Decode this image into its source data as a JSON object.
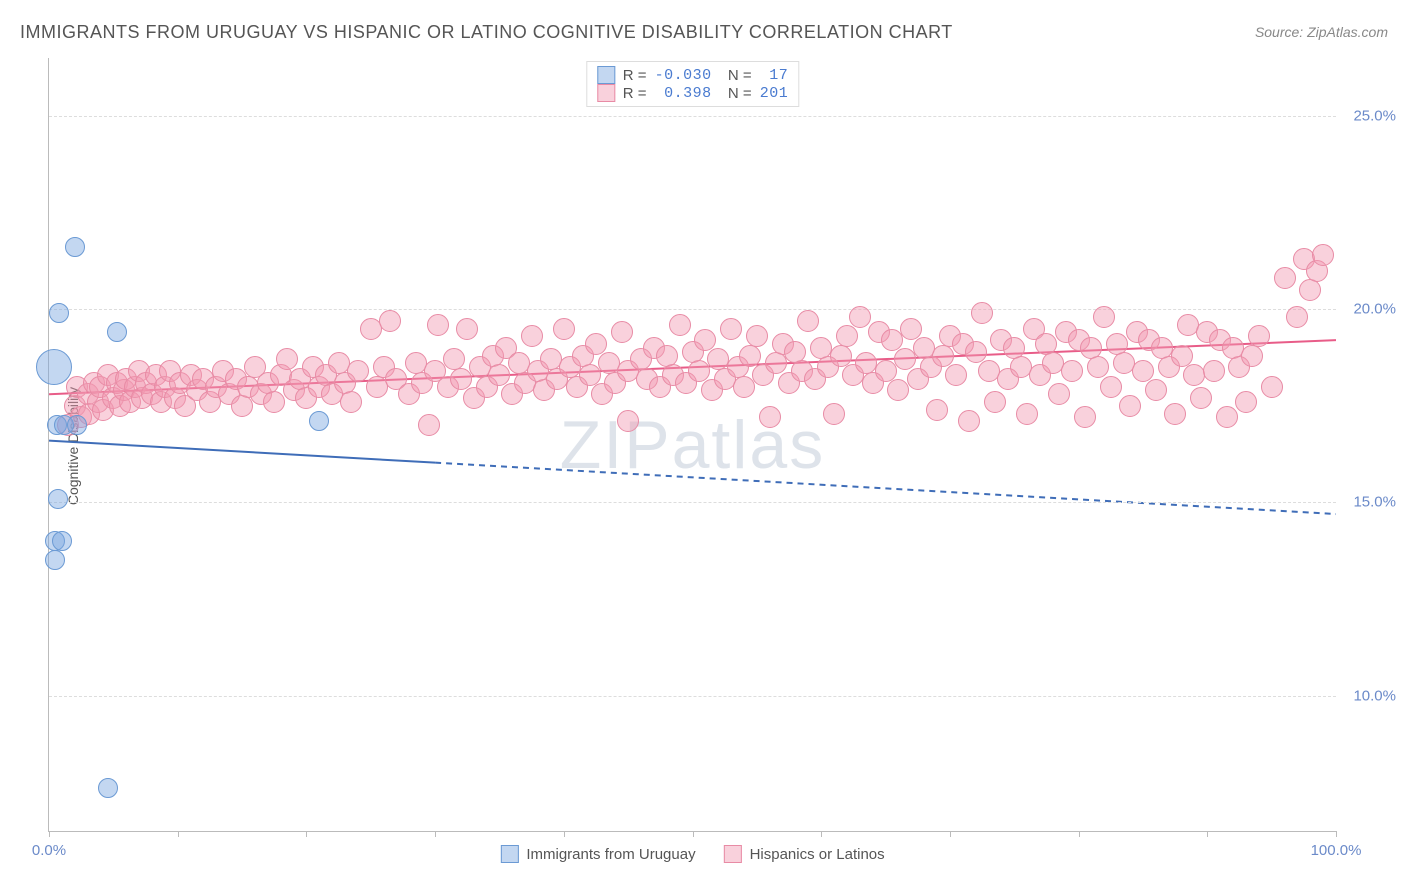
{
  "title": "IMMIGRANTS FROM URUGUAY VS HISPANIC OR LATINO COGNITIVE DISABILITY CORRELATION CHART",
  "source": "Source: ZipAtlas.com",
  "y_axis_label": "Cognitive Disability",
  "watermark": "ZIPatlas",
  "chart": {
    "type": "scatter",
    "xlim": [
      0,
      100
    ],
    "ylim": [
      6.5,
      26.5
    ],
    "y_gridlines": [
      10.0,
      15.0,
      20.0,
      25.0
    ],
    "y_tick_labels": [
      "10.0%",
      "15.0%",
      "20.0%",
      "25.0%"
    ],
    "x_ticks": [
      0,
      10,
      20,
      30,
      40,
      50,
      60,
      70,
      80,
      90,
      100
    ],
    "x_tick_labels": {
      "0": "0.0%",
      "100": "100.0%"
    },
    "background_color": "#ffffff",
    "grid_color": "#dddddd",
    "axis_color": "#bbbbbb",
    "series": {
      "blue": {
        "name": "Immigrants from Uruguay",
        "fill": "rgba(123,167,224,0.45)",
        "stroke": "#6b9ad4",
        "marker_radius": 10,
        "R": "-0.030",
        "N": "17",
        "trend": {
          "x1": 0,
          "y1": 16.6,
          "x2": 100,
          "y2": 14.7,
          "solid_until_x": 30,
          "color": "#3f6db8",
          "width": 2
        },
        "points": [
          {
            "x": 2.0,
            "y": 21.6,
            "r": 10
          },
          {
            "x": 0.8,
            "y": 19.9,
            "r": 10
          },
          {
            "x": 5.3,
            "y": 19.4,
            "r": 10
          },
          {
            "x": 0.4,
            "y": 18.5,
            "r": 18
          },
          {
            "x": 0.6,
            "y": 17.0,
            "r": 10
          },
          {
            "x": 1.2,
            "y": 17.0,
            "r": 10
          },
          {
            "x": 2.2,
            "y": 17.0,
            "r": 10
          },
          {
            "x": 21.0,
            "y": 17.1,
            "r": 10
          },
          {
            "x": 0.7,
            "y": 15.1,
            "r": 10
          },
          {
            "x": 0.5,
            "y": 14.0,
            "r": 10
          },
          {
            "x": 1.0,
            "y": 14.0,
            "r": 10
          },
          {
            "x": 0.5,
            "y": 13.5,
            "r": 10
          },
          {
            "x": 4.6,
            "y": 7.6,
            "r": 10
          }
        ]
      },
      "pink": {
        "name": "Hispanics or Latinos",
        "fill": "rgba(242,153,178,0.45)",
        "stroke": "#e88ba5",
        "marker_radius": 11,
        "R": "0.398",
        "N": "201",
        "trend": {
          "x1": 0,
          "y1": 17.8,
          "x2": 100,
          "y2": 19.2,
          "color": "#e85c88",
          "width": 2
        },
        "points": [
          {
            "x": 1.5,
            "y": 17.0
          },
          {
            "x": 2.0,
            "y": 17.5
          },
          {
            "x": 2.2,
            "y": 18.0
          },
          {
            "x": 2.5,
            "y": 17.2
          },
          {
            "x": 3.0,
            "y": 17.8
          },
          {
            "x": 3.1,
            "y": 17.3
          },
          {
            "x": 3.5,
            "y": 18.1
          },
          {
            "x": 3.8,
            "y": 17.6
          },
          {
            "x": 4.0,
            "y": 18.0
          },
          {
            "x": 4.2,
            "y": 17.4
          },
          {
            "x": 4.6,
            "y": 18.3
          },
          {
            "x": 5.0,
            "y": 17.7
          },
          {
            "x": 5.3,
            "y": 18.1
          },
          {
            "x": 5.5,
            "y": 17.5
          },
          {
            "x": 5.8,
            "y": 17.9
          },
          {
            "x": 6.0,
            "y": 18.2
          },
          {
            "x": 6.3,
            "y": 17.6
          },
          {
            "x": 6.7,
            "y": 18.0
          },
          {
            "x": 7.0,
            "y": 18.4
          },
          {
            "x": 7.2,
            "y": 17.7
          },
          {
            "x": 7.5,
            "y": 18.1
          },
          {
            "x": 8.0,
            "y": 17.8
          },
          {
            "x": 8.3,
            "y": 18.3
          },
          {
            "x": 8.7,
            "y": 17.6
          },
          {
            "x": 9.0,
            "y": 18.0
          },
          {
            "x": 9.4,
            "y": 18.4
          },
          {
            "x": 9.8,
            "y": 17.7
          },
          {
            "x": 10.2,
            "y": 18.1
          },
          {
            "x": 10.6,
            "y": 17.5
          },
          {
            "x": 11.0,
            "y": 18.3
          },
          {
            "x": 11.5,
            "y": 17.9
          },
          {
            "x": 12.0,
            "y": 18.2
          },
          {
            "x": 12.5,
            "y": 17.6
          },
          {
            "x": 13.0,
            "y": 18.0
          },
          {
            "x": 13.5,
            "y": 18.4
          },
          {
            "x": 14.0,
            "y": 17.8
          },
          {
            "x": 14.5,
            "y": 18.2
          },
          {
            "x": 15.0,
            "y": 17.5
          },
          {
            "x": 15.5,
            "y": 18.0
          },
          {
            "x": 16.0,
            "y": 18.5
          },
          {
            "x": 16.5,
            "y": 17.8
          },
          {
            "x": 17.0,
            "y": 18.1
          },
          {
            "x": 17.5,
            "y": 17.6
          },
          {
            "x": 18.0,
            "y": 18.3
          },
          {
            "x": 18.5,
            "y": 18.7
          },
          {
            "x": 19.0,
            "y": 17.9
          },
          {
            "x": 19.5,
            "y": 18.2
          },
          {
            "x": 20.0,
            "y": 17.7
          },
          {
            "x": 20.5,
            "y": 18.5
          },
          {
            "x": 21.0,
            "y": 18.0
          },
          {
            "x": 21.5,
            "y": 18.3
          },
          {
            "x": 22.0,
            "y": 17.8
          },
          {
            "x": 22.5,
            "y": 18.6
          },
          {
            "x": 23.0,
            "y": 18.1
          },
          {
            "x": 23.5,
            "y": 17.6
          },
          {
            "x": 24.0,
            "y": 18.4
          },
          {
            "x": 25.0,
            "y": 19.5
          },
          {
            "x": 25.5,
            "y": 18.0
          },
          {
            "x": 26.0,
            "y": 18.5
          },
          {
            "x": 26.5,
            "y": 19.7
          },
          {
            "x": 27.0,
            "y": 18.2
          },
          {
            "x": 28.0,
            "y": 17.8
          },
          {
            "x": 28.5,
            "y": 18.6
          },
          {
            "x": 29.0,
            "y": 18.1
          },
          {
            "x": 29.5,
            "y": 17.0
          },
          {
            "x": 30.0,
            "y": 18.4
          },
          {
            "x": 30.2,
            "y": 19.6
          },
          {
            "x": 31.0,
            "y": 18.0
          },
          {
            "x": 31.5,
            "y": 18.7
          },
          {
            "x": 32.0,
            "y": 18.2
          },
          {
            "x": 32.5,
            "y": 19.5
          },
          {
            "x": 33.0,
            "y": 17.7
          },
          {
            "x": 33.5,
            "y": 18.5
          },
          {
            "x": 34.0,
            "y": 18.0
          },
          {
            "x": 34.5,
            "y": 18.8
          },
          {
            "x": 35.0,
            "y": 18.3
          },
          {
            "x": 35.5,
            "y": 19.0
          },
          {
            "x": 36.0,
            "y": 17.8
          },
          {
            "x": 36.5,
            "y": 18.6
          },
          {
            "x": 37.0,
            "y": 18.1
          },
          {
            "x": 37.5,
            "y": 19.3
          },
          {
            "x": 38.0,
            "y": 18.4
          },
          {
            "x": 38.5,
            "y": 17.9
          },
          {
            "x": 39.0,
            "y": 18.7
          },
          {
            "x": 39.5,
            "y": 18.2
          },
          {
            "x": 40.0,
            "y": 19.5
          },
          {
            "x": 40.5,
            "y": 18.5
          },
          {
            "x": 41.0,
            "y": 18.0
          },
          {
            "x": 41.5,
            "y": 18.8
          },
          {
            "x": 42.0,
            "y": 18.3
          },
          {
            "x": 42.5,
            "y": 19.1
          },
          {
            "x": 43.0,
            "y": 17.8
          },
          {
            "x": 43.5,
            "y": 18.6
          },
          {
            "x": 44.0,
            "y": 18.1
          },
          {
            "x": 44.5,
            "y": 19.4
          },
          {
            "x": 45.0,
            "y": 18.4
          },
          {
            "x": 45.0,
            "y": 17.1
          },
          {
            "x": 46.0,
            "y": 18.7
          },
          {
            "x": 46.5,
            "y": 18.2
          },
          {
            "x": 47.0,
            "y": 19.0
          },
          {
            "x": 47.5,
            "y": 18.0
          },
          {
            "x": 48.0,
            "y": 18.8
          },
          {
            "x": 48.5,
            "y": 18.3
          },
          {
            "x": 49.0,
            "y": 19.6
          },
          {
            "x": 49.5,
            "y": 18.1
          },
          {
            "x": 50.0,
            "y": 18.9
          },
          {
            "x": 50.5,
            "y": 18.4
          },
          {
            "x": 51.0,
            "y": 19.2
          },
          {
            "x": 51.5,
            "y": 17.9
          },
          {
            "x": 52.0,
            "y": 18.7
          },
          {
            "x": 52.5,
            "y": 18.2
          },
          {
            "x": 53.0,
            "y": 19.5
          },
          {
            "x": 53.5,
            "y": 18.5
          },
          {
            "x": 54.0,
            "y": 18.0
          },
          {
            "x": 54.5,
            "y": 18.8
          },
          {
            "x": 55.0,
            "y": 19.3
          },
          {
            "x": 55.5,
            "y": 18.3
          },
          {
            "x": 56.0,
            "y": 17.2
          },
          {
            "x": 56.5,
            "y": 18.6
          },
          {
            "x": 57.0,
            "y": 19.1
          },
          {
            "x": 57.5,
            "y": 18.1
          },
          {
            "x": 58.0,
            "y": 18.9
          },
          {
            "x": 58.5,
            "y": 18.4
          },
          {
            "x": 59.0,
            "y": 19.7
          },
          {
            "x": 59.5,
            "y": 18.2
          },
          {
            "x": 60.0,
            "y": 19.0
          },
          {
            "x": 60.5,
            "y": 18.5
          },
          {
            "x": 61.0,
            "y": 17.3
          },
          {
            "x": 61.5,
            "y": 18.8
          },
          {
            "x": 62.0,
            "y": 19.3
          },
          {
            "x": 62.5,
            "y": 18.3
          },
          {
            "x": 63.0,
            "y": 19.8
          },
          {
            "x": 63.5,
            "y": 18.6
          },
          {
            "x": 64.0,
            "y": 18.1
          },
          {
            "x": 64.5,
            "y": 19.4
          },
          {
            "x": 65.0,
            "y": 18.4
          },
          {
            "x": 65.5,
            "y": 19.2
          },
          {
            "x": 66.0,
            "y": 17.9
          },
          {
            "x": 66.5,
            "y": 18.7
          },
          {
            "x": 67.0,
            "y": 19.5
          },
          {
            "x": 67.5,
            "y": 18.2
          },
          {
            "x": 68.0,
            "y": 19.0
          },
          {
            "x": 68.5,
            "y": 18.5
          },
          {
            "x": 69.0,
            "y": 17.4
          },
          {
            "x": 69.5,
            "y": 18.8
          },
          {
            "x": 70.0,
            "y": 19.3
          },
          {
            "x": 70.5,
            "y": 18.3
          },
          {
            "x": 71.0,
            "y": 19.1
          },
          {
            "x": 71.5,
            "y": 17.1
          },
          {
            "x": 72.0,
            "y": 18.9
          },
          {
            "x": 72.5,
            "y": 19.9
          },
          {
            "x": 73.0,
            "y": 18.4
          },
          {
            "x": 73.5,
            "y": 17.6
          },
          {
            "x": 74.0,
            "y": 19.2
          },
          {
            "x": 74.5,
            "y": 18.2
          },
          {
            "x": 75.0,
            "y": 19.0
          },
          {
            "x": 75.5,
            "y": 18.5
          },
          {
            "x": 76.0,
            "y": 17.3
          },
          {
            "x": 76.5,
            "y": 19.5
          },
          {
            "x": 77.0,
            "y": 18.3
          },
          {
            "x": 77.5,
            "y": 19.1
          },
          {
            "x": 78.0,
            "y": 18.6
          },
          {
            "x": 78.5,
            "y": 17.8
          },
          {
            "x": 79.0,
            "y": 19.4
          },
          {
            "x": 79.5,
            "y": 18.4
          },
          {
            "x": 80.0,
            "y": 19.2
          },
          {
            "x": 80.5,
            "y": 17.2
          },
          {
            "x": 81.0,
            "y": 19.0
          },
          {
            "x": 81.5,
            "y": 18.5
          },
          {
            "x": 82.0,
            "y": 19.8
          },
          {
            "x": 82.5,
            "y": 18.0
          },
          {
            "x": 83.0,
            "y": 19.1
          },
          {
            "x": 83.5,
            "y": 18.6
          },
          {
            "x": 84.0,
            "y": 17.5
          },
          {
            "x": 84.5,
            "y": 19.4
          },
          {
            "x": 85.0,
            "y": 18.4
          },
          {
            "x": 85.5,
            "y": 19.2
          },
          {
            "x": 86.0,
            "y": 17.9
          },
          {
            "x": 86.5,
            "y": 19.0
          },
          {
            "x": 87.0,
            "y": 18.5
          },
          {
            "x": 87.5,
            "y": 17.3
          },
          {
            "x": 88.0,
            "y": 18.8
          },
          {
            "x": 88.5,
            "y": 19.6
          },
          {
            "x": 89.0,
            "y": 18.3
          },
          {
            "x": 89.5,
            "y": 17.7
          },
          {
            "x": 90.0,
            "y": 19.4
          },
          {
            "x": 90.5,
            "y": 18.4
          },
          {
            "x": 91.0,
            "y": 19.2
          },
          {
            "x": 91.5,
            "y": 17.2
          },
          {
            "x": 92.0,
            "y": 19.0
          },
          {
            "x": 92.5,
            "y": 18.5
          },
          {
            "x": 93.0,
            "y": 17.6
          },
          {
            "x": 93.5,
            "y": 18.8
          },
          {
            "x": 94.0,
            "y": 19.3
          },
          {
            "x": 95.0,
            "y": 18.0
          },
          {
            "x": 96.0,
            "y": 20.8
          },
          {
            "x": 97.0,
            "y": 19.8
          },
          {
            "x": 97.5,
            "y": 21.3
          },
          {
            "x": 98.0,
            "y": 20.5
          },
          {
            "x": 98.5,
            "y": 21.0
          },
          {
            "x": 99.0,
            "y": 21.4
          }
        ]
      }
    }
  },
  "legend_top": {
    "rows": [
      {
        "swatch_fill": "rgba(123,167,224,0.45)",
        "swatch_stroke": "#6b9ad4",
        "R_label": "R =",
        "R_value": "-0.030",
        "N_label": "N =",
        "N_value": " 17"
      },
      {
        "swatch_fill": "rgba(242,153,178,0.45)",
        "swatch_stroke": "#e88ba5",
        "R_label": "R =",
        "R_value": " 0.398",
        "N_label": "N =",
        "N_value": "201"
      }
    ]
  },
  "legend_bottom": {
    "items": [
      {
        "swatch_fill": "rgba(123,167,224,0.45)",
        "swatch_stroke": "#6b9ad4",
        "label": "Immigrants from Uruguay"
      },
      {
        "swatch_fill": "rgba(242,153,178,0.45)",
        "swatch_stroke": "#e88ba5",
        "label": "Hispanics or Latinos"
      }
    ]
  }
}
